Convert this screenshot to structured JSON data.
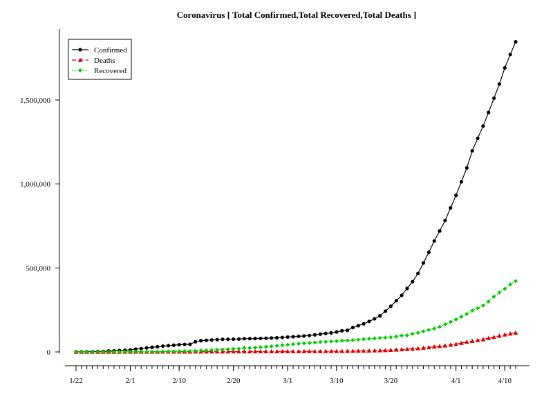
{
  "chart_data": {
    "type": "line",
    "title": "Coronavirus [ Total Confirmed,Total Recovered,Total Deaths ]",
    "xlabel": "",
    "ylabel": "",
    "x_start": "1/22",
    "x_end": "4/13",
    "x_tick_labels": [
      "1/22",
      "2/1",
      "2/10",
      "2/20",
      "3/1",
      "3/10",
      "3/20",
      "4/1",
      "4/10"
    ],
    "y_tick_labels": [
      "0",
      "500,000",
      "1,000,000",
      "1,500,000"
    ],
    "ylim": [
      0,
      1900000
    ],
    "legend_position": "top-left",
    "grid": false,
    "series": [
      {
        "name": "Confirmed",
        "color": "#000000",
        "line_style": "solid",
        "marker": "circle",
        "values": [
          555,
          654,
          941,
          1434,
          2118,
          2927,
          5578,
          6166,
          8234,
          9927,
          12038,
          16787,
          19881,
          23892,
          27635,
          30794,
          34391,
          37120,
          40150,
          42762,
          44802,
          45221,
          60368,
          66885,
          69030,
          71224,
          73258,
          75136,
          75639,
          76197,
          76819,
          78572,
          78958,
          79561,
          80406,
          81388,
          82746,
          84112,
          86011,
          88369,
          90306,
          92840,
          95120,
          97886,
          101801,
          105847,
          109821,
          113590,
          118620,
          125875,
          128352,
          145205,
          156101,
          167454,
          181574,
          197102,
          214821,
          242570,
          272208,
          304507,
          336953,
          378235,
          418045,
          467653,
          529591,
          593291,
          660693,
          720140,
          782389,
          857487,
          932605,
          1013157,
          1095917,
          1197405,
          1272115,
          1345101,
          1426096,
          1511104,
          1595350,
          1691719,
          1771514,
          1846680
        ]
      },
      {
        "name": "Deaths",
        "color": "#e00000",
        "line_style": "dashed",
        "marker": "triangle",
        "values": [
          17,
          18,
          26,
          42,
          56,
          82,
          131,
          133,
          171,
          213,
          259,
          362,
          426,
          492,
          564,
          634,
          719,
          806,
          906,
          1013,
          1113,
          1118,
          1371,
          1523,
          1666,
          1770,
          1868,
          2007,
          2122,
          2247,
          2251,
          2458,
          2469,
          2629,
          2708,
          2770,
          2814,
          2872,
          2941,
          2996,
          3085,
          3160,
          3254,
          3348,
          3460,
          3558,
          3802,
          3988,
          4262,
          4615,
          4720,
          5404,
          5819,
          6440,
          7126,
          7905,
          8733,
          9867,
          11299,
          12973,
          14623,
          16497,
          18615,
          21181,
          23970,
          27198,
          30652,
          33925,
          37582,
          42107,
          46809,
          52983,
          58787,
          64606,
          69374,
          74565,
          81865,
          88338,
          95455,
          102525,
          108503,
          114091
        ]
      },
      {
        "name": "Recovered",
        "color": "#00cc00",
        "line_style": "dotted",
        "marker": "diamond",
        "values": [
          28,
          30,
          36,
          39,
          52,
          61,
          107,
          126,
          143,
          222,
          284,
          472,
          623,
          852,
          1124,
          1487,
          2011,
          2616,
          3244,
          3946,
          4683,
          5150,
          6295,
          8058,
          9395,
          10865,
          12583,
          14352,
          16121,
          18177,
          18890,
          22886,
          23394,
          25227,
          27905,
          30384,
          33277,
          36711,
          39782,
          42716,
          45602,
          48228,
          51170,
          53796,
          55865,
          58358,
          60694,
          62494,
          64404,
          67003,
          68324,
          70251,
          72624,
          76034,
          78088,
          80840,
          83207,
          84854,
          87256,
          91676,
          97243,
          98334,
          107990,
          113770,
          122150,
          130915,
          139415,
          149082,
          164566,
          178034,
          193177,
          210263,
          225796,
          246152,
          260012,
          276515,
          300054,
          328661,
          353975,
          376096,
          402110,
          421722
        ]
      }
    ]
  }
}
